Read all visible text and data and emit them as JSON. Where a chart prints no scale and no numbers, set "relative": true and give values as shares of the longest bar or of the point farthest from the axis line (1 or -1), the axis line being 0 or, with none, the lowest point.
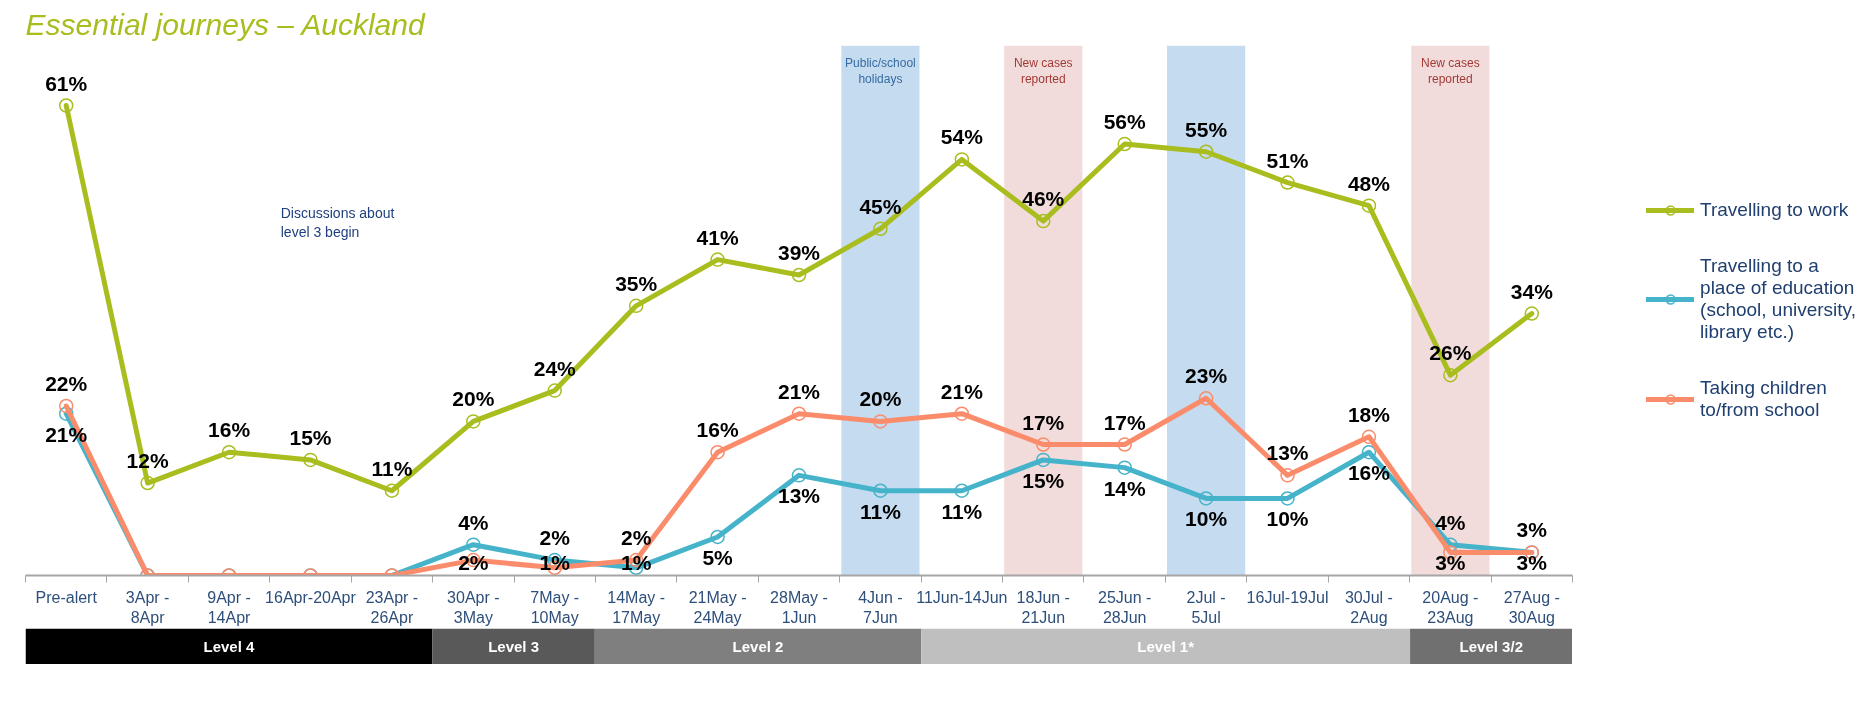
{
  "chart_data": [
    {
      "type": "line",
      "title": "Essential journeys – Auckland",
      "categories": [
        "Pre-alert",
        "3Apr - 8Apr",
        "9Apr - 14Apr",
        "16Apr-20Apr",
        "23Apr - 26Apr",
        "30Apr - 3May",
        "7May - 10May",
        "14May - 17May",
        "21May - 24May",
        "28May - 1Jun",
        "4Jun - 7Jun",
        "11Jun-14Jun",
        "18Jun - 21Jun",
        "25Jun - 28Jun",
        "2Jul - 5Jul",
        "16Jul-19Jul",
        "30Jul - 2Aug",
        "20Aug - 23Aug",
        "27Aug - 30Aug"
      ],
      "series": [
        {
          "name": "Travelling to work",
          "color": "#a9bd1f",
          "values": [
            61,
            12,
            16,
            15,
            11,
            20,
            24,
            35,
            41,
            39,
            45,
            54,
            46,
            56,
            55,
            51,
            48,
            26,
            34
          ],
          "value_labels": [
            "61%",
            "12%",
            "16%",
            "15%",
            "11%",
            "20%",
            "24%",
            "35%",
            "41%",
            "39%",
            "45%",
            "54%",
            "46%",
            "56%",
            "55%",
            "51%",
            "48%",
            "26%",
            "34%"
          ]
        },
        {
          "name": "Travelling to a place of education (school, university, library etc.)",
          "color": "#45b3ca",
          "values": [
            21,
            0,
            0,
            0,
            0,
            4,
            2,
            1,
            5,
            13,
            11,
            11,
            15,
            14,
            10,
            10,
            16,
            4,
            3
          ],
          "value_labels": [
            "21%",
            null,
            null,
            null,
            null,
            "4%",
            "2%",
            "1%",
            "5%",
            "13%",
            "11%",
            "11%",
            "15%",
            "14%",
            "10%",
            "10%",
            "16%",
            "4%",
            "3%"
          ]
        },
        {
          "name": "Taking children to/from school",
          "color": "#fb8c6b",
          "values": [
            22,
            0,
            0,
            0,
            0,
            2,
            1,
            2,
            16,
            21,
            20,
            21,
            17,
            17,
            23,
            13,
            18,
            3,
            3
          ],
          "value_labels": [
            "22%",
            null,
            null,
            null,
            null,
            "2%",
            "1%",
            "2%",
            "16%",
            "21%",
            "20%",
            "21%",
            "17%",
            "17%",
            "23%",
            "13%",
            "18%",
            "3%",
            "3%"
          ]
        }
      ],
      "tick_labels": "x",
      "marker": "circle",
      "line_style": "solid",
      "legend": "right",
      "bands": [
        {
          "axis": "x",
          "from": "4Jun - 7Jun",
          "to": "4Jun - 7Jun",
          "label": "Public/school holidays",
          "color": "#c5dbf0"
        },
        {
          "axis": "x",
          "from": "2Jul - 5Jul",
          "to": "2Jul - 5Jul",
          "color": "#c5dbf0"
        },
        {
          "axis": "x",
          "from": "18Jun - 21Jun",
          "to": "18Jun - 21Jun",
          "label": "New cases reported",
          "color": "#f2dcdb"
        },
        {
          "axis": "x",
          "from": "20Aug - 23Aug",
          "to": "20Aug - 23Aug",
          "label": "New cases reported",
          "color": "#f2dcdb"
        }
      ],
      "annotations": [
        "Discussions about level 3 begin"
      ]
    },
    {
      "type": "bar",
      "orientation": "horizontal",
      "stacked": true,
      "relative": true,
      "categories": [
        null
      ],
      "tick_labels": false,
      "series": [
        {
          "name": "Level 4",
          "color": "#000000",
          "values": [
            0.263
          ]
        },
        {
          "name": "Level 3",
          "color": "#595959",
          "values": [
            0.105
          ]
        },
        {
          "name": "Level 2",
          "color": "#7f7f7f",
          "values": [
            0.211
          ]
        },
        {
          "name": "Level 1*",
          "color": "#bfbfbf",
          "values": [
            0.316
          ]
        },
        {
          "name": "Level 3/2",
          "color": "#707070",
          "values": [
            0.105
          ]
        }
      ]
    }
  ]
}
